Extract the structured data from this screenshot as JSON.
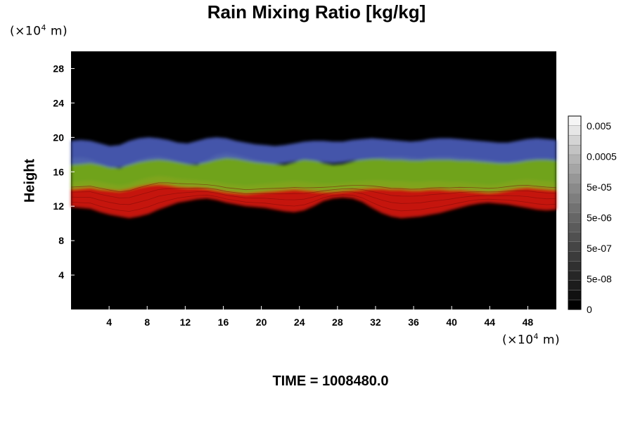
{
  "chart_data": {
    "type": "heatmap",
    "title": "Rain Mixing Ratio [kg/kg]",
    "ylabel": "Height",
    "xlabel": "",
    "y_unit_prefix": "(×10",
    "y_unit_exp": "4",
    "y_unit_suffix": " m)",
    "x_unit_prefix": "(×10",
    "x_unit_exp": "4",
    "x_unit_suffix": " m)",
    "xlim": [
      0,
      51
    ],
    "ylim": [
      0,
      30
    ],
    "x_ticks": [
      "4",
      "8",
      "12",
      "16",
      "20",
      "24",
      "28",
      "32",
      "36",
      "40",
      "44",
      "48"
    ],
    "y_ticks": [
      "4",
      "8",
      "12",
      "16",
      "20",
      "24",
      "28"
    ],
    "colorbar": {
      "labels": [
        "0.005",
        "0.0005",
        "5e-05",
        "5e-06",
        "5e-07",
        "5e-08",
        "0"
      ],
      "scale": "log",
      "colors": [
        "#000000",
        "#111111",
        "#1c1c1c",
        "#262626",
        "#303030",
        "#3b3b3b",
        "#454545",
        "#505050",
        "#5b5b5b",
        "#666666",
        "#727272",
        "#7e7e7e",
        "#8a8a8a",
        "#979797",
        "#a5a5a5",
        "#b3b3b3",
        "#c3c3c3",
        "#d4d4d4",
        "#e6e6e6",
        "#f5f5f5"
      ]
    },
    "layers": [
      {
        "name": "red",
        "color": "#d6150f",
        "bottom": [
          11.9,
          11.8,
          11.7,
          11.3,
          11.0,
          10.8,
          10.6,
          10.8,
          11.1,
          11.6,
          12.0,
          12.4,
          12.6,
          12.8,
          12.9,
          12.7,
          12.4,
          12.2,
          12.0,
          11.9,
          11.8,
          11.6,
          11.4,
          11.3,
          11.5,
          12.0,
          12.6,
          12.9,
          13.0,
          12.9,
          12.5,
          11.8,
          11.2,
          10.8,
          10.6,
          10.7,
          10.8,
          11.0,
          11.2,
          11.5,
          11.8,
          12.1,
          12.3,
          12.4,
          12.3,
          12.2,
          12.0,
          11.8,
          11.6,
          11.5,
          11.6
        ],
        "top": [
          14.8,
          14.9,
          15.0,
          14.8,
          14.6,
          14.4,
          14.6,
          15.0,
          15.3,
          15.5,
          15.4,
          15.2,
          15.1,
          15.0,
          14.9,
          14.8,
          14.6,
          14.5,
          14.4,
          14.5,
          14.6,
          14.7,
          14.8,
          14.9,
          14.8,
          14.7,
          14.6,
          14.6,
          14.7,
          14.8,
          14.9,
          15.0,
          15.0,
          14.9,
          14.9,
          14.8,
          14.8,
          14.9,
          14.9,
          14.8,
          14.8,
          14.7,
          14.6,
          14.5,
          14.6,
          14.8,
          15.0,
          15.1,
          15.0,
          14.9,
          14.8
        ]
      },
      {
        "name": "green",
        "color": "#7ab11e",
        "bottom": [
          14.0,
          14.1,
          14.2,
          14.0,
          13.9,
          13.8,
          14.0,
          14.3,
          14.5,
          14.6,
          14.5,
          14.3,
          14.2,
          14.2,
          14.1,
          13.9,
          13.7,
          13.6,
          13.5,
          13.6,
          13.7,
          13.8,
          13.9,
          14.0,
          13.9,
          13.8,
          13.7,
          13.7,
          13.8,
          13.9,
          14.0,
          14.1,
          14.1,
          14.0,
          14.0,
          13.9,
          13.9,
          14.0,
          14.0,
          13.9,
          13.9,
          13.8,
          13.7,
          13.6,
          13.7,
          13.9,
          14.1,
          14.2,
          14.1,
          14.0,
          13.9
        ],
        "top": [
          17.6,
          17.7,
          17.5,
          17.0,
          16.6,
          16.4,
          16.9,
          17.4,
          17.7,
          17.8,
          17.6,
          17.2,
          16.9,
          16.8,
          17.4,
          18.0,
          18.2,
          18.0,
          17.7,
          17.4,
          17.1,
          16.9,
          16.8,
          17.1,
          17.5,
          17.4,
          17.0,
          16.8,
          16.9,
          17.2,
          17.5,
          17.6,
          17.7,
          17.8,
          17.8,
          17.7,
          17.6,
          17.7,
          17.8,
          17.8,
          17.7,
          17.6,
          17.5,
          17.4,
          17.2,
          17.1,
          17.3,
          17.5,
          17.6,
          17.6,
          17.5
        ]
      },
      {
        "name": "blue",
        "color": "#4a5bb8",
        "bottom": [
          16.8,
          16.9,
          17.0,
          16.8,
          16.5,
          16.5,
          16.8,
          17.1,
          17.3,
          17.4,
          17.3,
          17.1,
          16.9,
          16.9,
          17.1,
          17.4,
          17.6,
          17.5,
          17.3,
          17.1,
          17.0,
          16.9,
          17.0,
          17.2,
          17.4,
          17.3,
          17.1,
          17.0,
          17.1,
          17.3,
          17.4,
          17.5,
          17.5,
          17.4,
          17.4,
          17.3,
          17.3,
          17.4,
          17.4,
          17.4,
          17.3,
          17.3,
          17.2,
          17.1,
          17.0,
          17.0,
          17.1,
          17.3,
          17.4,
          17.4,
          17.3
        ],
        "top": [
          19.6,
          19.7,
          19.6,
          19.3,
          19.0,
          19.1,
          19.6,
          19.9,
          20.0,
          19.9,
          19.7,
          19.4,
          19.3,
          19.6,
          19.9,
          20.0,
          19.9,
          19.6,
          19.4,
          19.2,
          19.1,
          19.0,
          19.1,
          19.3,
          19.5,
          19.6,
          19.6,
          19.5,
          19.5,
          19.7,
          19.8,
          19.9,
          19.8,
          19.7,
          19.6,
          19.5,
          19.6,
          19.8,
          19.9,
          19.9,
          19.8,
          19.7,
          19.6,
          19.5,
          19.4,
          19.4,
          19.6,
          19.8,
          19.9,
          19.8,
          19.7
        ]
      }
    ]
  },
  "footer": {
    "time_text": "TIME = 1008480.0"
  }
}
